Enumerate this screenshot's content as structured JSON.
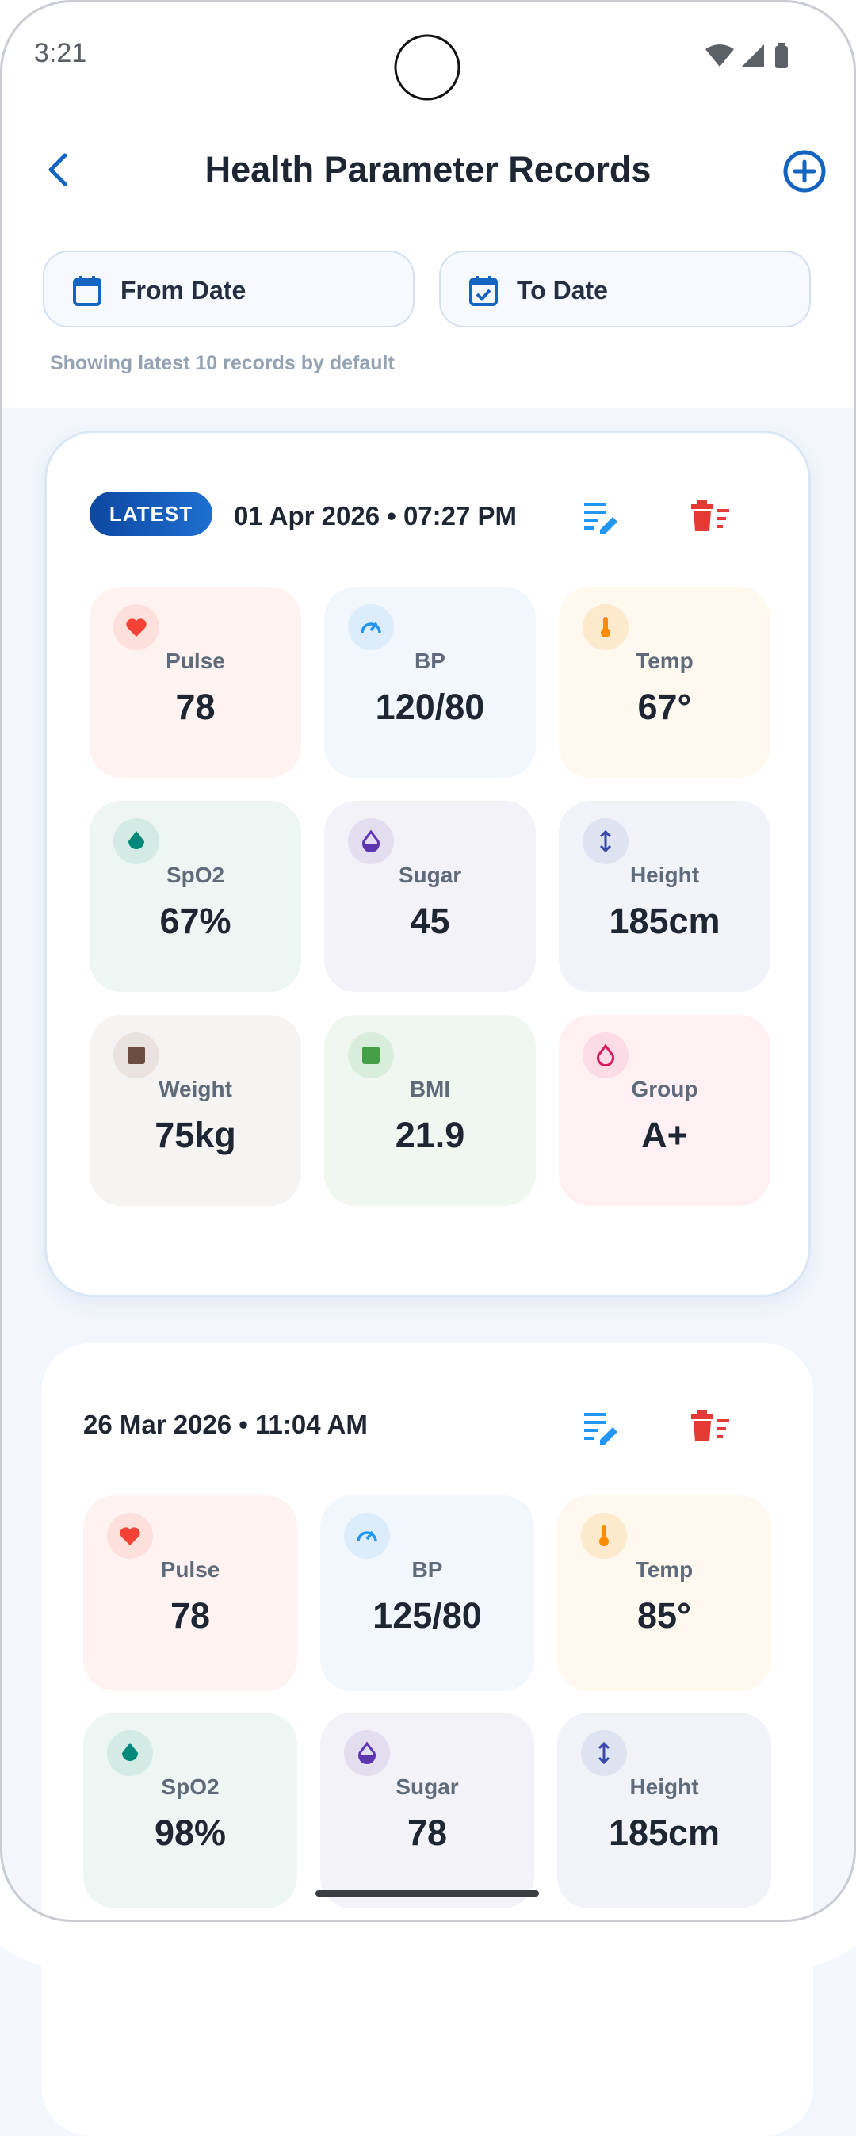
{
  "status_bar": {
    "time": "3:21"
  },
  "header": {
    "title": "Health Parameter Records"
  },
  "filters": {
    "from": "From Date",
    "to": "To Date",
    "note": "Showing latest 10 records by default"
  },
  "records": [
    {
      "badge": "LATEST",
      "date": "01 Apr 2026 • 07:27 PM",
      "tiles": [
        {
          "label": "Pulse",
          "value": "78"
        },
        {
          "label": "BP",
          "value": "120/80"
        },
        {
          "label": "Temp",
          "value": "67°"
        },
        {
          "label": "SpO2",
          "value": "67%"
        },
        {
          "label": "Sugar",
          "value": "45"
        },
        {
          "label": "Height",
          "value": "185cm"
        },
        {
          "label": "Weight",
          "value": "75kg"
        },
        {
          "label": "BMI",
          "value": "21.9"
        },
        {
          "label": "Group",
          "value": "A+"
        }
      ]
    },
    {
      "date": "26 Mar 2026 • 11:04 AM",
      "tiles": [
        {
          "label": "Pulse",
          "value": "78"
        },
        {
          "label": "BP",
          "value": "125/80"
        },
        {
          "label": "Temp",
          "value": "85°"
        },
        {
          "label": "SpO2",
          "value": "98%"
        },
        {
          "label": "Sugar",
          "value": "78"
        },
        {
          "label": "Height",
          "value": "185cm"
        }
      ]
    }
  ]
}
